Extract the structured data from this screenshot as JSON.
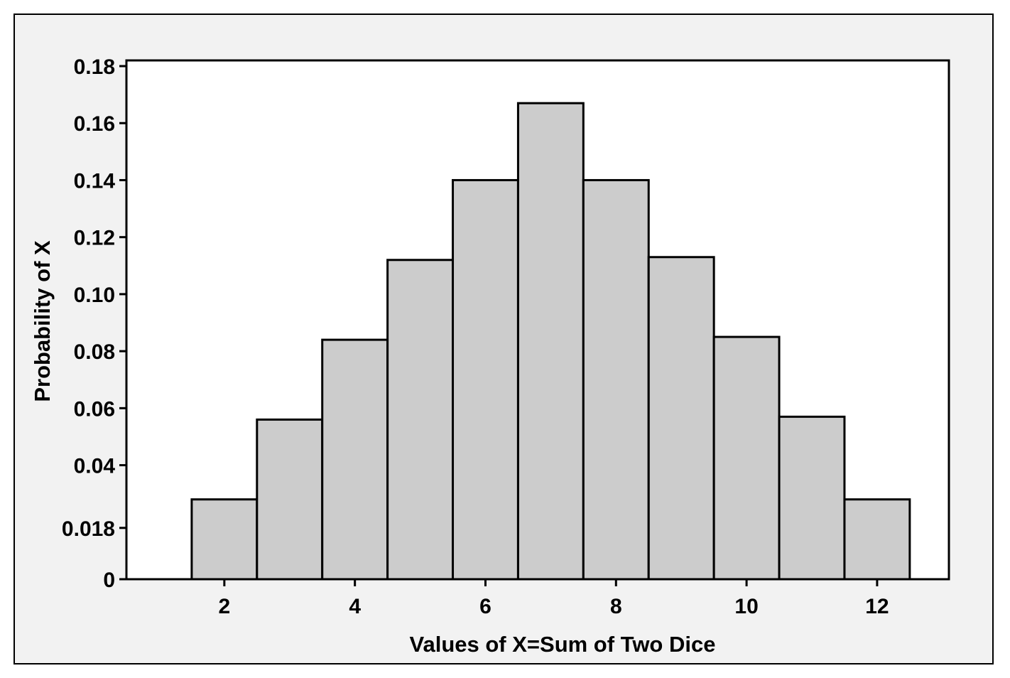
{
  "chart_data": {
    "type": "bar",
    "title": "",
    "xlabel": "Values of X=Sum of Two Dice",
    "ylabel": "Probability of X",
    "x": [
      2,
      3,
      4,
      5,
      6,
      7,
      8,
      9,
      10,
      11,
      12
    ],
    "values": [
      0.028,
      0.056,
      0.084,
      0.112,
      0.14,
      0.167,
      0.14,
      0.113,
      0.085,
      0.057,
      0.028
    ],
    "xlim": [
      0.5,
      13.1
    ],
    "ylim": [
      0,
      0.182
    ],
    "xticks": [
      2,
      4,
      6,
      8,
      10,
      12
    ],
    "xtick_labels": [
      "2",
      "4",
      "6",
      "8",
      "10",
      "12"
    ],
    "yticks": [
      0,
      0.018,
      0.04,
      0.06,
      0.08,
      0.1,
      0.12,
      0.14,
      0.16,
      0.18
    ],
    "ytick_labels": [
      "0",
      "0.018",
      "0.04",
      "0.06",
      "0.08",
      "0.10",
      "0.12",
      "0.14",
      "0.16",
      "0.18"
    ],
    "bar_width": 1,
    "grid": false,
    "legend": "none",
    "colors": {
      "bar_fill": "#cccccc",
      "bar_stroke": "#000000",
      "panel_background": "#f2f2f2",
      "plot_background": "#ffffff"
    }
  }
}
